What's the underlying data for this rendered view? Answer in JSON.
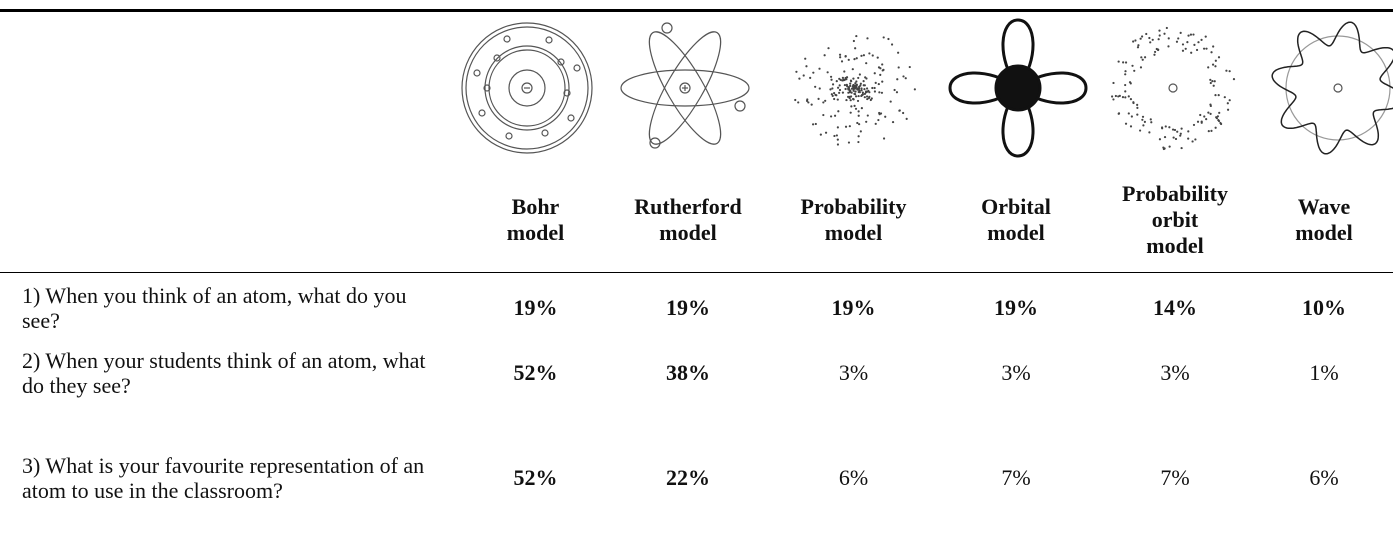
{
  "table": {
    "columns": [
      "Bohr\nmodel",
      "Rutherford\nmodel",
      "Probability\nmodel",
      "Orbital\nmodel",
      "Probability\norbit\nmodel",
      "Wave\nmodel"
    ],
    "rows": [
      {
        "question": "1) When you think of an atom, what do you see?",
        "values": [
          "19%",
          "19%",
          "19%",
          "19%",
          "14%",
          "10%"
        ]
      },
      {
        "question": "2) When your students think of an atom, what do they see?",
        "values": [
          "52%",
          "38%",
          "3%",
          "3%",
          "3%",
          "1%"
        ]
      },
      {
        "question": "3) What is your favourite representation of an atom to use in the classroom?",
        "values": [
          "52%",
          "22%",
          "6%",
          "7%",
          "7%",
          "6%"
        ]
      }
    ]
  }
}
